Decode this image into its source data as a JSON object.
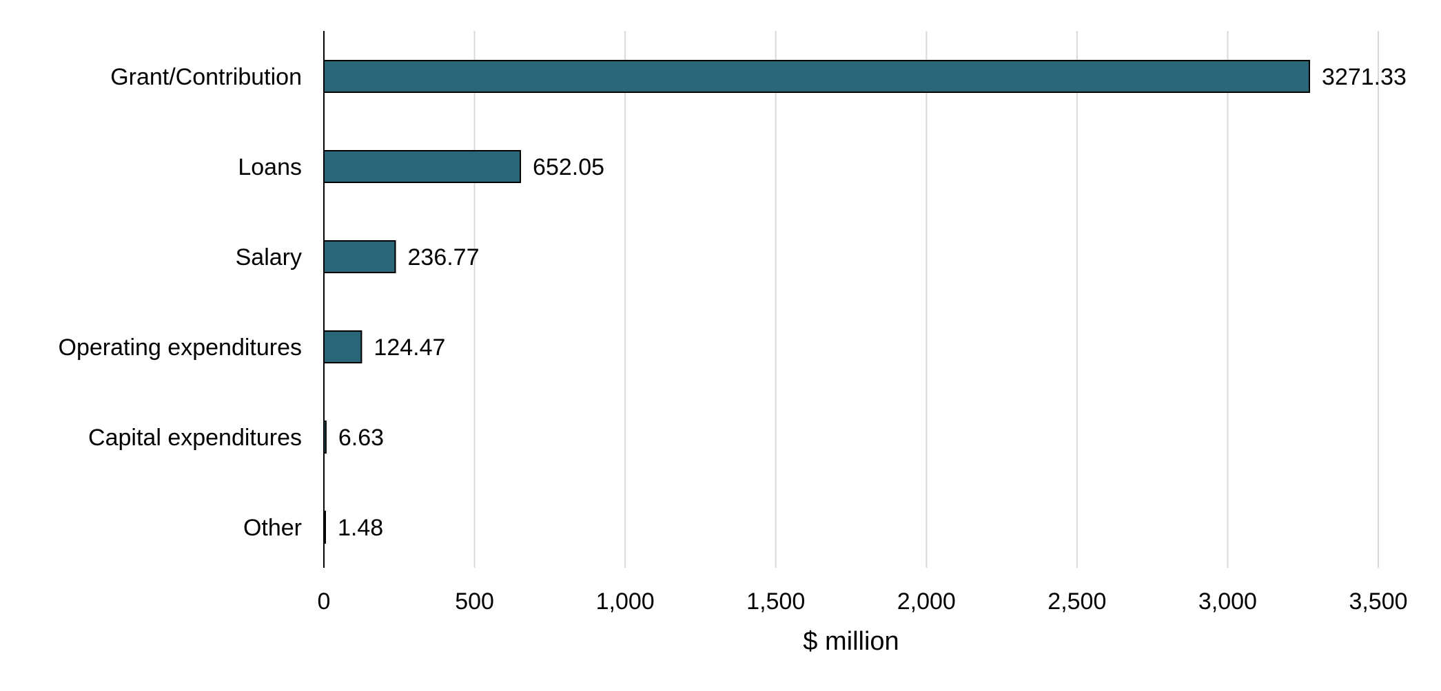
{
  "chart_data": {
    "type": "bar",
    "orientation": "horizontal",
    "categories": [
      "Grant/Contribution",
      "Loans",
      "Salary",
      "Operating expenditures",
      "Capital expenditures",
      "Other"
    ],
    "values": [
      3271.33,
      652.05,
      236.77,
      124.47,
      6.63,
      1.48
    ],
    "value_labels": [
      "3271.33",
      "652.05",
      "236.77",
      "124.47",
      "6.63",
      "1.48"
    ],
    "xlabel": "$ million",
    "ylabel": "",
    "title": "",
    "xlim": [
      0,
      3500
    ],
    "xticks": [
      0,
      500,
      1000,
      1500,
      2000,
      2500,
      3000,
      3500
    ],
    "xtick_labels": [
      "0",
      "500",
      "1,000",
      "1,500",
      "2,000",
      "2,500",
      "3,000",
      "3,500"
    ],
    "grid": "vertical",
    "legend": "none",
    "bar_color": "#2a6678",
    "bar_edge_color": "#000000"
  }
}
